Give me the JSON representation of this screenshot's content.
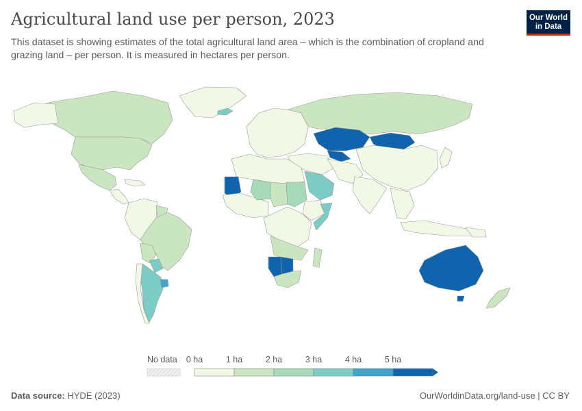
{
  "header": {
    "title": "Agricultural land use per person, 2023",
    "subtitle": "This dataset is showing estimates of the total agricultural land area – which is the combination of cropland and grazing land – per person. It is measured in hectares per person.",
    "logo_line1": "Our World",
    "logo_line2": "in Data"
  },
  "colors": {
    "bin0": "#f1f8e6",
    "bin1": "#c9e6c1",
    "bin2": "#a7dab8",
    "bin3": "#7accc4",
    "bin4": "#43a2cb",
    "bin5": "#0f64ad",
    "nodata": "#f2f2f2",
    "border": "#999999"
  },
  "legend": {
    "nodata_label": "No data",
    "ticks": [
      "0 ha",
      "1 ha",
      "2 ha",
      "3 ha",
      "4 ha",
      "5 ha"
    ]
  },
  "map_data": {
    "unit": "hectares per person",
    "year": "2023",
    "regions_by_bin": {
      "0-1 ha": [
        "Europe",
        "China",
        "India",
        "Southeast Asia",
        "Middle East",
        "North Africa",
        "Central America",
        "West Africa"
      ],
      "1-2 ha": [
        "Canada",
        "United States",
        "Russia",
        "Brazil",
        "Mexico",
        "Sudan",
        "Chad"
      ],
      "2-3 ha": [
        "Niger",
        "South Sudan"
      ],
      "3-4 ha": [
        "Saudi Arabia",
        "Somalia",
        "Argentina",
        "Paraguay"
      ],
      "4-5 ha": [
        "Uruguay"
      ],
      "5+ ha": [
        "Australia",
        "Kazakhstan",
        "Mongolia",
        "Turkmenistan",
        "Mauritania",
        "Namibia",
        "Botswana"
      ]
    }
  },
  "footer": {
    "source_label": "Data source:",
    "source_value": "HYDE (2023)",
    "link": "OurWorldinData.org/land-use | CC BY"
  }
}
